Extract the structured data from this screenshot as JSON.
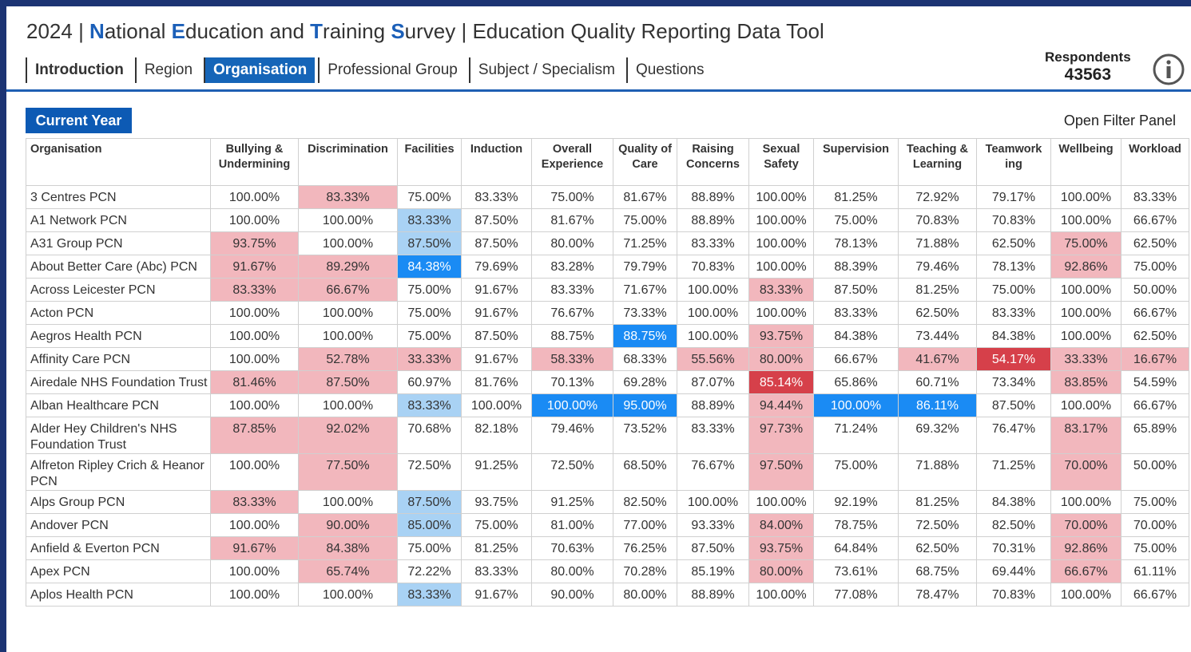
{
  "header": {
    "title_parts": [
      "2024 | ",
      "N",
      "ational ",
      "E",
      "ducation and ",
      "T",
      "raining ",
      "S",
      "urvey | Education Quality Reporting Data Tool"
    ],
    "tabs": [
      "Introduction",
      "Region",
      "Organisation",
      "Professional Group",
      "Subject / Specialism",
      "Questions"
    ],
    "respondents_label": "Respondents",
    "respondents_value": "43563"
  },
  "toolbar": {
    "button": "Current Year",
    "filter": "Open Filter Panel"
  },
  "table": {
    "columns": [
      "Organisation",
      "Bullying & Undermining",
      "Discrimination",
      "Facilities",
      "Induction",
      "Overall Experience",
      "Quality of Care",
      "Raising Concerns",
      "Sexual Safety",
      "Supervision",
      "Teaching & Learning",
      "Teamwork ing",
      "Wellbeing",
      "Workload"
    ],
    "rows": [
      [
        "3 Centres PCN",
        "100.00%",
        "83.33%",
        "75.00%",
        "83.33%",
        "75.00%",
        "81.67%",
        "88.89%",
        "100.00%",
        "81.25%",
        "72.92%",
        "79.17%",
        "100.00%",
        "83.33%"
      ],
      [
        "A1 Network PCN",
        "100.00%",
        "100.00%",
        "83.33%",
        "87.50%",
        "81.67%",
        "75.00%",
        "88.89%",
        "100.00%",
        "75.00%",
        "70.83%",
        "70.83%",
        "100.00%",
        "66.67%"
      ],
      [
        "A31 Group PCN",
        "93.75%",
        "100.00%",
        "87.50%",
        "87.50%",
        "80.00%",
        "71.25%",
        "83.33%",
        "100.00%",
        "78.13%",
        "71.88%",
        "62.50%",
        "75.00%",
        "62.50%"
      ],
      [
        "About Better Care (Abc) PCN",
        "91.67%",
        "89.29%",
        "84.38%",
        "79.69%",
        "83.28%",
        "79.79%",
        "70.83%",
        "100.00%",
        "88.39%",
        "79.46%",
        "78.13%",
        "92.86%",
        "75.00%"
      ],
      [
        "Across Leicester PCN",
        "83.33%",
        "66.67%",
        "75.00%",
        "91.67%",
        "83.33%",
        "71.67%",
        "100.00%",
        "83.33%",
        "87.50%",
        "81.25%",
        "75.00%",
        "100.00%",
        "50.00%"
      ],
      [
        "Acton PCN",
        "100.00%",
        "100.00%",
        "75.00%",
        "91.67%",
        "76.67%",
        "73.33%",
        "100.00%",
        "100.00%",
        "83.33%",
        "62.50%",
        "83.33%",
        "100.00%",
        "66.67%"
      ],
      [
        "Aegros Health PCN",
        "100.00%",
        "100.00%",
        "75.00%",
        "87.50%",
        "88.75%",
        "88.75%",
        "100.00%",
        "93.75%",
        "84.38%",
        "73.44%",
        "84.38%",
        "100.00%",
        "62.50%"
      ],
      [
        "Affinity Care PCN",
        "100.00%",
        "52.78%",
        "33.33%",
        "91.67%",
        "58.33%",
        "68.33%",
        "55.56%",
        "80.00%",
        "66.67%",
        "41.67%",
        "54.17%",
        "33.33%",
        "16.67%"
      ],
      [
        "Airedale NHS Foundation Trust",
        "81.46%",
        "87.50%",
        "60.97%",
        "81.76%",
        "70.13%",
        "69.28%",
        "87.07%",
        "85.14%",
        "65.86%",
        "60.71%",
        "73.34%",
        "83.85%",
        "54.59%"
      ],
      [
        "Alban Healthcare PCN",
        "100.00%",
        "100.00%",
        "83.33%",
        "100.00%",
        "100.00%",
        "95.00%",
        "88.89%",
        "94.44%",
        "100.00%",
        "86.11%",
        "87.50%",
        "100.00%",
        "66.67%"
      ],
      [
        "Alder Hey Children's NHS Foundation Trust",
        "87.85%",
        "92.02%",
        "70.68%",
        "82.18%",
        "79.46%",
        "73.52%",
        "83.33%",
        "97.73%",
        "71.24%",
        "69.32%",
        "76.47%",
        "83.17%",
        "65.89%"
      ],
      [
        "Alfreton Ripley Crich & Heanor PCN",
        "100.00%",
        "77.50%",
        "72.50%",
        "91.25%",
        "72.50%",
        "68.50%",
        "76.67%",
        "97.50%",
        "75.00%",
        "71.88%",
        "71.25%",
        "70.00%",
        "50.00%"
      ],
      [
        "Alps Group PCN",
        "83.33%",
        "100.00%",
        "87.50%",
        "93.75%",
        "91.25%",
        "82.50%",
        "100.00%",
        "100.00%",
        "92.19%",
        "81.25%",
        "84.38%",
        "100.00%",
        "75.00%"
      ],
      [
        "Andover PCN",
        "100.00%",
        "90.00%",
        "85.00%",
        "75.00%",
        "81.00%",
        "77.00%",
        "93.33%",
        "84.00%",
        "78.75%",
        "72.50%",
        "82.50%",
        "70.00%",
        "70.00%"
      ],
      [
        "Anfield & Everton PCN",
        "91.67%",
        "84.38%",
        "75.00%",
        "81.25%",
        "70.63%",
        "76.25%",
        "87.50%",
        "93.75%",
        "64.84%",
        "62.50%",
        "70.31%",
        "92.86%",
        "75.00%"
      ],
      [
        "Apex PCN",
        "100.00%",
        "65.74%",
        "72.22%",
        "83.33%",
        "80.00%",
        "70.28%",
        "85.19%",
        "80.00%",
        "73.61%",
        "68.75%",
        "69.44%",
        "66.67%",
        "61.11%"
      ],
      [
        "Aplos Health PCN",
        "100.00%",
        "100.00%",
        "83.33%",
        "91.67%",
        "90.00%",
        "80.00%",
        "88.89%",
        "100.00%",
        "77.08%",
        "78.47%",
        "70.83%",
        "100.00%",
        "66.67%"
      ]
    ]
  }
}
